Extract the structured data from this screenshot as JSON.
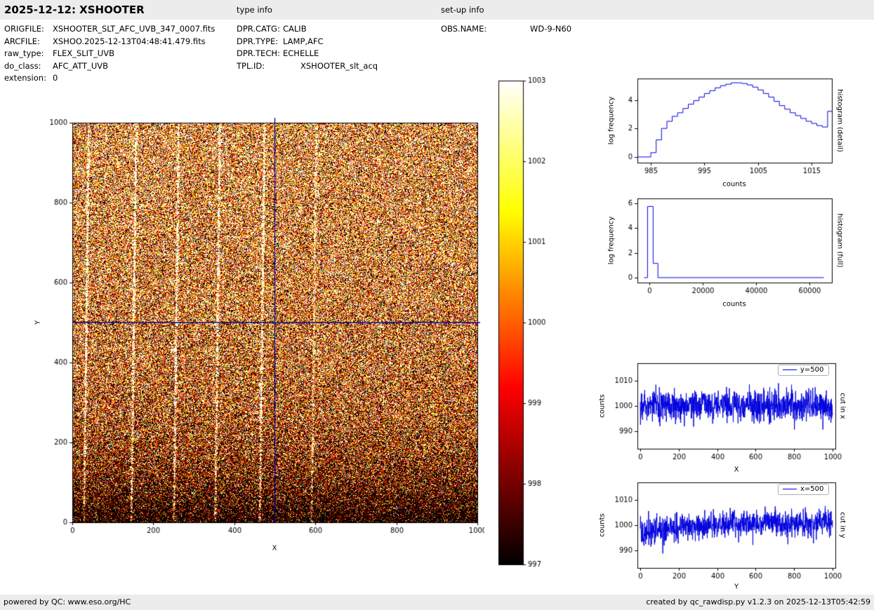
{
  "header": {
    "title": "2025-12-12: XSHOOTER",
    "type_info_label": "type info",
    "setup_info_label": "set-up info"
  },
  "file_info": {
    "left": [
      {
        "label": "ORIGFILE:",
        "value": "XSHOOTER_SLT_AFC_UVB_347_0007.fits"
      },
      {
        "label": "ARCFILE:",
        "value": "XSHOO.2025-12-13T04:48:41.479.fits"
      },
      {
        "label": "raw_type:",
        "value": "FLEX_SLIT_UVB"
      },
      {
        "label": "do_class:",
        "value": "AFC_ATT_UVB"
      },
      {
        "label": "extension:",
        "value": "0"
      }
    ],
    "middle": [
      {
        "label": "DPR.CATG:",
        "value": "CALIB"
      },
      {
        "label": "DPR.TYPE:",
        "value": "LAMP,AFC"
      },
      {
        "label": "DPR.TECH:",
        "value": "ECHELLE"
      },
      {
        "label": "TPL.ID:",
        "value": "XSHOOTER_slt_acq"
      }
    ],
    "right": [
      {
        "label": "OBS.NAME:",
        "value": "WD-9-N60"
      }
    ]
  },
  "footer": {
    "left": "powered by QC: www.eso.org/HC",
    "right": "created by qc_rawdisp.py v1.2.3 on 2025-12-13T05:42:59"
  },
  "chart_data": [
    {
      "id": "detector-image",
      "type": "heatmap",
      "xlabel": "X",
      "ylabel": "Y",
      "xlim": [
        0,
        1000
      ],
      "ylim": [
        0,
        1000
      ],
      "xticks": [
        0,
        200,
        400,
        600,
        800,
        1000
      ],
      "yticks": [
        0,
        200,
        400,
        600,
        800,
        1000
      ],
      "colormap": "hot",
      "colorbar": {
        "min": 997,
        "max": 1003,
        "ticks": [
          997,
          998,
          999,
          1000,
          1001,
          1002,
          1003
        ]
      },
      "seed": 42,
      "noise_sigma": 3.2,
      "base": {
        "offset": 1000.0,
        "slope": 0.0007,
        "dip": 4.8,
        "tau": 150
      },
      "crosshair": {
        "x": 500,
        "y": 500,
        "color": "#00008b"
      },
      "traces": [
        {
          "x": 28,
          "tilt": 12,
          "amp": 6.5
        },
        {
          "x": 145,
          "tilt": 12,
          "amp": 6.5
        },
        {
          "x": 250,
          "tilt": 12,
          "amp": 6.5
        },
        {
          "x": 352,
          "tilt": 12,
          "amp": 6.0
        },
        {
          "x": 462,
          "tilt": 12,
          "amp": 6.0
        },
        {
          "x": 590,
          "tilt": 12,
          "amp": 4.0
        }
      ],
      "blobs": [
        {
          "x": 250,
          "y": 432,
          "r": 8,
          "amp": 6
        },
        {
          "x": 352,
          "y": 498,
          "r": 5,
          "amp": 5
        },
        {
          "x": 463,
          "y": 345,
          "r": 6,
          "amp": 6
        },
        {
          "x": 464,
          "y": 385,
          "r": 5,
          "amp": 6
        },
        {
          "x": 465,
          "y": 430,
          "r": 5,
          "amp": 5
        },
        {
          "x": 466,
          "y": 272,
          "r": 5,
          "amp": 5
        },
        {
          "x": 590,
          "y": 128,
          "r": 5,
          "amp": 4
        },
        {
          "x": 592,
          "y": 208,
          "r": 4,
          "amp": 4
        },
        {
          "x": 618,
          "y": 268,
          "r": 4,
          "amp": 5
        }
      ],
      "description": "Raw XSHOOTER UVB calibration frame: gaussian noise around 1000 counts clipped to colorbar range 997-1003, darker toward the bottom rows, with tilted bright vertical echelle traces and navy crosshair at x=500, y=500"
    },
    {
      "id": "histogram-detail",
      "type": "line",
      "step": true,
      "color": "#0000dd",
      "xlabel": "counts",
      "ylabel": "log frequency",
      "right_label": "histogram (detail)",
      "xlim": [
        982.5,
        1018.8
      ],
      "ylim": [
        -0.4,
        5.5
      ],
      "xticks": [
        985,
        995,
        1005,
        1015
      ],
      "yticks": [
        0,
        2,
        4
      ],
      "x": [
        984,
        985,
        986,
        987,
        988,
        989,
        990,
        991,
        992,
        993,
        994,
        995,
        996,
        997,
        998,
        999,
        1000,
        1001,
        1002,
        1003,
        1004,
        1005,
        1006,
        1007,
        1008,
        1009,
        1010,
        1011,
        1012,
        1013,
        1014,
        1015,
        1016,
        1017,
        1018
      ],
      "y": [
        0,
        0.3,
        1.2,
        2.0,
        2.5,
        2.85,
        3.1,
        3.4,
        3.7,
        3.95,
        4.2,
        4.45,
        4.65,
        4.85,
        5.0,
        5.1,
        5.2,
        5.2,
        5.15,
        5.05,
        4.9,
        4.7,
        4.45,
        4.2,
        3.9,
        3.6,
        3.35,
        3.1,
        2.9,
        2.7,
        2.5,
        2.35,
        2.2,
        2.1,
        3.2
      ]
    },
    {
      "id": "histogram-full",
      "type": "line",
      "step": false,
      "color": "#0000dd",
      "xlabel": "counts",
      "ylabel": "log frequency",
      "right_label": "histogram (full)",
      "xlim": [
        -4500,
        68500
      ],
      "ylim": [
        -0.4,
        6.4
      ],
      "xticks": [
        0,
        20000,
        40000,
        60000
      ],
      "yticks": [
        0,
        2,
        4,
        6
      ],
      "x": [
        -2000,
        -700,
        -700,
        1400,
        1400,
        3200,
        3200,
        65500
      ],
      "y": [
        0,
        0,
        5.75,
        5.75,
        1.15,
        1.15,
        0,
        0
      ]
    },
    {
      "id": "cut-in-x",
      "type": "line",
      "color": "#0000dd",
      "legend": "y=500",
      "xlabel": "X",
      "ylabel": "counts",
      "right_label": "cut in x",
      "xlim": [
        -15,
        1015
      ],
      "ylim": [
        983,
        1017
      ],
      "xticks": [
        0,
        200,
        400,
        600,
        800,
        1000
      ],
      "yticks": [
        990,
        1000,
        1010
      ],
      "noise": {
        "seed": 7,
        "n": 1000,
        "xrange": [
          0,
          1000
        ],
        "mean": 1000,
        "sigma": 3.0
      }
    },
    {
      "id": "cut-in-y",
      "type": "line",
      "color": "#0000dd",
      "legend": "x=500",
      "xlabel": "Y",
      "ylabel": "counts",
      "right_label": "cut in y",
      "xlim": [
        -15,
        1015
      ],
      "ylim": [
        983,
        1017
      ],
      "xticks": [
        0,
        200,
        400,
        600,
        800,
        1000
      ],
      "yticks": [
        990,
        1000,
        1010
      ],
      "noise": {
        "seed": 11,
        "n": 1000,
        "xrange": [
          0,
          1000
        ],
        "profile": "rise",
        "base": 1000.3,
        "slope": 0.0007,
        "dip": 4.8,
        "tau": 150,
        "sigma": 2.6
      }
    }
  ]
}
